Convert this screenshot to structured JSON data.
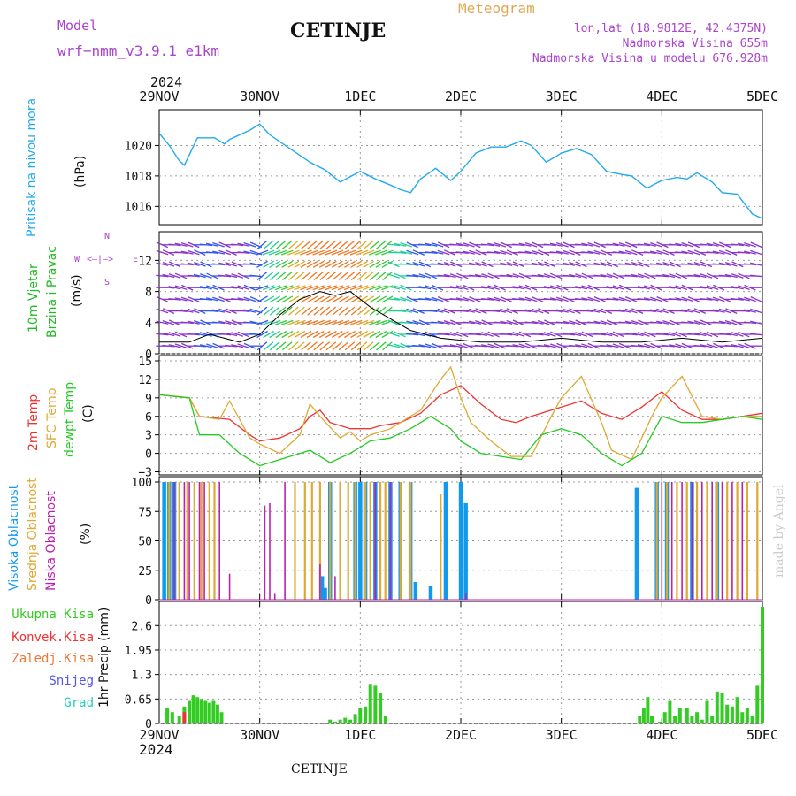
{
  "header": {
    "model_label": "Model",
    "model_name": "wrf−nmm_v3.9.1  e1km",
    "station": "CETINJE",
    "meteogram": "Meteogram",
    "coords": "lon,lat (18.9812E, 42.4375N)",
    "altitude": "Nadmorska Visina 655m",
    "model_altitude": "Nadmorska Visina u modelu 676.928m",
    "year_top": "2024",
    "year_bottom": "2024",
    "footer_station": "CETINJE",
    "watermark": "made by Angel"
  },
  "x_axis": {
    "range": [
      0,
      6
    ],
    "ticks": [
      "29NOV",
      "30NOV",
      "1DEC",
      "2DEC",
      "3DEC",
      "4DEC",
      "5DEC"
    ]
  },
  "panel_labels": {
    "pressure": [
      "Pritisak na nivou mora"
    ],
    "pressure_unit": "(hPa)",
    "wind": [
      "10m Vjetar",
      "Brzina i Pravac"
    ],
    "wind_unit": "(m/s)",
    "wind_compass": {
      "north": "N",
      "south": "S",
      "west": "W",
      "east": "E"
    },
    "temp": [
      "2m Temp",
      "SFC Temp",
      "dewpt Temp"
    ],
    "temp_unit": "(C)",
    "cloud": [
      "Visoka Oblacnost",
      "Srednja Oblacnost",
      "Niska Oblacnost"
    ],
    "cloud_unit": "(%)",
    "precip": [
      "Ukupna Kisa",
      "Konvek.Kisa",
      "Zaledj.Kisa",
      "Snijeg",
      "Grad"
    ],
    "precip_unit": "1hr Precip (mm)"
  },
  "colors": {
    "pressure": "#22aaee",
    "wind_label": "#22bb22",
    "t2m": "#ee3333",
    "sfc": "#ddaa33",
    "dewpt": "#22cc22",
    "high_cloud": "#1199ee",
    "mid_cloud": "#ddaa33",
    "low_cloud": "#bb22aa",
    "precip_total": "#33cc22",
    "precip_conv": "#ee3333",
    "precip_frz": "#ee7733",
    "snow": "#5555ee",
    "grad": "#22ccbb",
    "purple_text": "#aa44cc",
    "meteogram": "#ddaa55",
    "grid": "#999999"
  },
  "chart_data": [
    {
      "type": "line",
      "name": "pressure",
      "ylim": [
        1014.8,
        1022
      ],
      "yticks": [
        "1016",
        "1018",
        "1020"
      ],
      "x": [
        0,
        0.1,
        0.2,
        0.25,
        0.38,
        0.55,
        0.65,
        0.7,
        0.9,
        1.0,
        1.1,
        1.3,
        1.5,
        1.65,
        1.8,
        2.0,
        2.15,
        2.3,
        2.4,
        2.5,
        2.6,
        2.75,
        2.9,
        3.0,
        3.15,
        3.3,
        3.45,
        3.6,
        3.7,
        3.85,
        4.0,
        4.15,
        4.3,
        4.45,
        4.6,
        4.7,
        4.85,
        5.0,
        5.15,
        5.25,
        5.35,
        5.5,
        5.6,
        5.75,
        5.9,
        6.0
      ],
      "values": [
        1020.8,
        1020,
        1019,
        1018.7,
        1020.5,
        1020.5,
        1020.1,
        1020.4,
        1021,
        1021.4,
        1020.7,
        1019.8,
        1018.9,
        1018.4,
        1017.6,
        1018.3,
        1017.8,
        1017.4,
        1017.1,
        1016.9,
        1017.8,
        1018.5,
        1017.7,
        1018.3,
        1019.5,
        1019.9,
        1019.9,
        1020.3,
        1020.0,
        1018.9,
        1019.5,
        1019.8,
        1019.4,
        1018.3,
        1018.1,
        1018.0,
        1017.2,
        1017.7,
        1017.9,
        1017.8,
        1018.2,
        1017.6,
        1016.9,
        1016.8,
        1015.5,
        1015.2
      ]
    },
    {
      "type": "line",
      "name": "wind",
      "ylim": [
        0,
        15
      ],
      "yticks": [
        "0",
        "4",
        "8",
        "12"
      ],
      "x": [
        0,
        0.3,
        0.5,
        0.8,
        1.0,
        1.2,
        1.4,
        1.6,
        1.75,
        1.9,
        2.1,
        2.3,
        2.5,
        2.8,
        3.2,
        3.6,
        4.0,
        4.4,
        4.8,
        5.2,
        5.6,
        6.0
      ],
      "values": [
        1.5,
        1.5,
        2.5,
        1.5,
        2.5,
        5,
        7,
        8,
        7.5,
        8,
        6,
        4.5,
        3,
        2,
        1.5,
        1.5,
        2,
        1.5,
        1.5,
        2,
        1.5,
        2
      ]
    },
    {
      "type": "line",
      "name": "temperature",
      "ylim": [
        -3.5,
        15
      ],
      "yticks": [
        "−3",
        "0",
        "3",
        "6",
        "9",
        "12",
        "15"
      ],
      "series": [
        {
          "name": "2m Temp",
          "x": [
            0,
            0.3,
            0.4,
            0.7,
            0.9,
            1.0,
            1.2,
            1.4,
            1.5,
            1.6,
            1.7,
            1.9,
            2.1,
            2.2,
            2.4,
            2.6,
            2.8,
            3.0,
            3.2,
            3.4,
            3.55,
            3.7,
            4.0,
            4.2,
            4.4,
            4.6,
            4.8,
            5.0,
            5.2,
            5.4,
            5.6,
            5.8,
            6.0
          ],
          "values": [
            9.5,
            9,
            6,
            5.5,
            3,
            2,
            2.5,
            4,
            6,
            7,
            5,
            4,
            4,
            4.5,
            5,
            6.5,
            9.5,
            11,
            8,
            5.5,
            5,
            6,
            7.5,
            8.5,
            6.5,
            5.5,
            7.5,
            10,
            7,
            5.5,
            5.5,
            6,
            6.5
          ]
        },
        {
          "name": "SFC Temp",
          "x": [
            0,
            0.3,
            0.4,
            0.6,
            0.7,
            0.9,
            1.0,
            1.2,
            1.4,
            1.5,
            1.6,
            1.8,
            1.9,
            2.0,
            2.1,
            2.3,
            2.4,
            2.6,
            2.8,
            2.9,
            3.0,
            3.1,
            3.3,
            3.5,
            3.7,
            3.9,
            4.0,
            4.2,
            4.4,
            4.5,
            4.7,
            4.9,
            5.0,
            5.2,
            5.4,
            5.6,
            5.8,
            6.0
          ],
          "values": [
            9.5,
            9,
            6,
            5.5,
            8.5,
            2.5,
            1.5,
            0,
            3,
            8,
            6,
            2.5,
            3.5,
            2,
            3,
            4,
            5,
            7,
            12,
            14,
            9,
            5,
            2,
            -0.5,
            -0.5,
            6,
            9,
            12.5,
            5,
            0.5,
            -1,
            6,
            9,
            12.5,
            6,
            5.5,
            6,
            6
          ]
        },
        {
          "name": "dewpt Temp",
          "x": [
            0,
            0.3,
            0.4,
            0.6,
            0.8,
            1.0,
            1.2,
            1.4,
            1.5,
            1.7,
            1.9,
            2.1,
            2.3,
            2.5,
            2.7,
            2.9,
            3.0,
            3.2,
            3.4,
            3.6,
            3.8,
            4.0,
            4.2,
            4.4,
            4.6,
            4.8,
            5.0,
            5.2,
            5.4,
            5.6,
            5.8,
            6.0
          ],
          "values": [
            9.5,
            9,
            3,
            3,
            0,
            -2,
            -1,
            0,
            0.5,
            -1.5,
            0,
            2,
            2.5,
            4,
            6,
            4,
            2,
            0,
            -0.5,
            -1,
            3,
            4,
            3,
            0,
            -2,
            0,
            6,
            5,
            5,
            5.5,
            6,
            5.5
          ]
        }
      ]
    },
    {
      "type": "bar",
      "name": "cloud",
      "ylim": [
        0,
        100
      ],
      "yticks": [
        "0",
        "25",
        "50",
        "75",
        "100"
      ],
      "series": [
        {
          "name": "Visoka Oblacnost",
          "x": [
            0.05,
            0.1,
            0.15,
            1.62,
            1.65,
            1.7,
            1.95,
            2.0,
            2.05,
            2.15,
            2.3,
            2.4,
            2.5,
            2.55,
            2.7,
            2.85,
            3.0,
            3.05,
            4.75,
            4.95,
            5.05,
            5.3,
            5.55
          ],
          "values": [
            100,
            100,
            100,
            20,
            10,
            100,
            100,
            100,
            100,
            100,
            100,
            100,
            100,
            15,
            12,
            100,
            100,
            82,
            95,
            100,
            100,
            100,
            100
          ]
        },
        {
          "name": "Srednja Oblacnost",
          "x": [
            0.1,
            0.2,
            0.28,
            0.35,
            0.42,
            0.5,
            0.55,
            1.35,
            1.45,
            1.52,
            1.6,
            1.7,
            1.8,
            1.88,
            1.95,
            2.05,
            2.1,
            2.2,
            2.25,
            2.4,
            2.5,
            2.8,
            4.95,
            5.05,
            5.15,
            5.25,
            5.35,
            5.45,
            5.55,
            5.65,
            5.75,
            5.85,
            5.95
          ],
          "values": [
            100,
            100,
            100,
            100,
            100,
            100,
            100,
            100,
            100,
            100,
            100,
            100,
            100,
            100,
            100,
            100,
            100,
            100,
            100,
            100,
            100,
            90,
            100,
            100,
            100,
            100,
            100,
            100,
            100,
            100,
            100,
            100,
            100
          ]
        },
        {
          "name": "Niska Oblacnost",
          "x": [
            0.15,
            0.25,
            0.3,
            0.4,
            0.45,
            0.6,
            0.7,
            1.05,
            1.1,
            1.15,
            1.25,
            1.6,
            1.75,
            2.15,
            2.3,
            3.05,
            5.0,
            5.1,
            5.2,
            5.3,
            5.4,
            5.5,
            5.6,
            5.7,
            5.8
          ],
          "values": [
            100,
            100,
            100,
            100,
            100,
            100,
            22,
            80,
            82,
            5,
            100,
            30,
            20,
            100,
            100,
            5,
            100,
            100,
            100,
            100,
            100,
            100,
            100,
            100,
            100
          ]
        }
      ]
    },
    {
      "type": "bar",
      "name": "precipitation",
      "ylim": [
        0,
        3.1
      ],
      "yticks": [
        "0",
        "0.65",
        "1.3",
        "1.95",
        "2.6"
      ],
      "series": [
        {
          "name": "Ukupna Kisa",
          "x": [
            0.08,
            0.13,
            0.2,
            0.25,
            0.3,
            0.34,
            0.38,
            0.42,
            0.46,
            0.5,
            0.54,
            0.58,
            0.62,
            1.7,
            1.75,
            1.8,
            1.85,
            1.9,
            1.95,
            2.0,
            2.05,
            2.1,
            2.15,
            2.2,
            2.25,
            4.78,
            4.82,
            4.86,
            4.9,
            4.98,
            5.03,
            5.08,
            5.13,
            5.18,
            5.25,
            5.3,
            5.35,
            5.4,
            5.45,
            5.5,
            5.55,
            5.6,
            5.65,
            5.7,
            5.75,
            5.8,
            5.85,
            5.9,
            5.95,
            6.0
          ],
          "values": [
            0.4,
            0.3,
            0.2,
            0.45,
            0.6,
            0.75,
            0.7,
            0.65,
            0.6,
            0.55,
            0.6,
            0.5,
            0.3,
            0.1,
            0.05,
            0.1,
            0.15,
            0.1,
            0.25,
            0.4,
            0.45,
            1.05,
            1.0,
            0.8,
            0.2,
            0.2,
            0.4,
            0.7,
            0.2,
            0.05,
            0.3,
            0.6,
            0.2,
            0.4,
            0.4,
            0.2,
            0.3,
            0.1,
            0.6,
            0.2,
            0.85,
            0.8,
            0.5,
            0.45,
            0.7,
            0.3,
            0.4,
            0.2,
            1.0,
            3.1
          ]
        },
        {
          "name": "Konvek.Kisa",
          "x": [
            0.25
          ],
          "values": [
            0.3
          ]
        }
      ]
    }
  ]
}
